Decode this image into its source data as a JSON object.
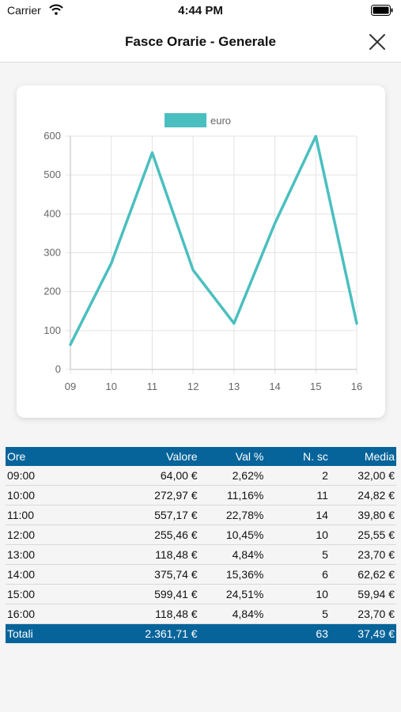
{
  "status": {
    "carrier": "Carrier",
    "time": "4:44 PM"
  },
  "header": {
    "title": "Fasce Orarie - Generale"
  },
  "colors": {
    "accent": "#4bbfbf",
    "table_header": "#07649a"
  },
  "chart_data": {
    "type": "line",
    "legend": [
      "euro"
    ],
    "legend_position": "top-center",
    "x": [
      "09",
      "10",
      "11",
      "12",
      "13",
      "14",
      "15",
      "16"
    ],
    "series": [
      {
        "name": "euro",
        "values": [
          64.0,
          272.97,
          557.17,
          255.46,
          118.48,
          375.74,
          599.41,
          118.48
        ]
      }
    ],
    "yticks": [
      "0",
      "100",
      "200",
      "300",
      "400",
      "500",
      "600"
    ],
    "ylim": [
      0,
      600
    ],
    "grid": true
  },
  "table": {
    "columns": [
      "Ore",
      "Valore",
      "Val %",
      "N. sc",
      "Media"
    ],
    "rows": [
      [
        "09:00",
        "64,00 €",
        "2,62%",
        "2",
        "32,00 €"
      ],
      [
        "10:00",
        "272,97 €",
        "11,16%",
        "11",
        "24,82 €"
      ],
      [
        "11:00",
        "557,17 €",
        "22,78%",
        "14",
        "39,80 €"
      ],
      [
        "12:00",
        "255,46 €",
        "10,45%",
        "10",
        "25,55 €"
      ],
      [
        "13:00",
        "118,48 €",
        "4,84%",
        "5",
        "23,70 €"
      ],
      [
        "14:00",
        "375,74 €",
        "15,36%",
        "6",
        "62,62 €"
      ],
      [
        "15:00",
        "599,41 €",
        "24,51%",
        "10",
        "59,94 €"
      ],
      [
        "16:00",
        "118,48 €",
        "4,84%",
        "5",
        "23,70 €"
      ]
    ],
    "totals": [
      "Totali",
      "2.361,71 €",
      "",
      "63",
      "37,49 €"
    ]
  }
}
